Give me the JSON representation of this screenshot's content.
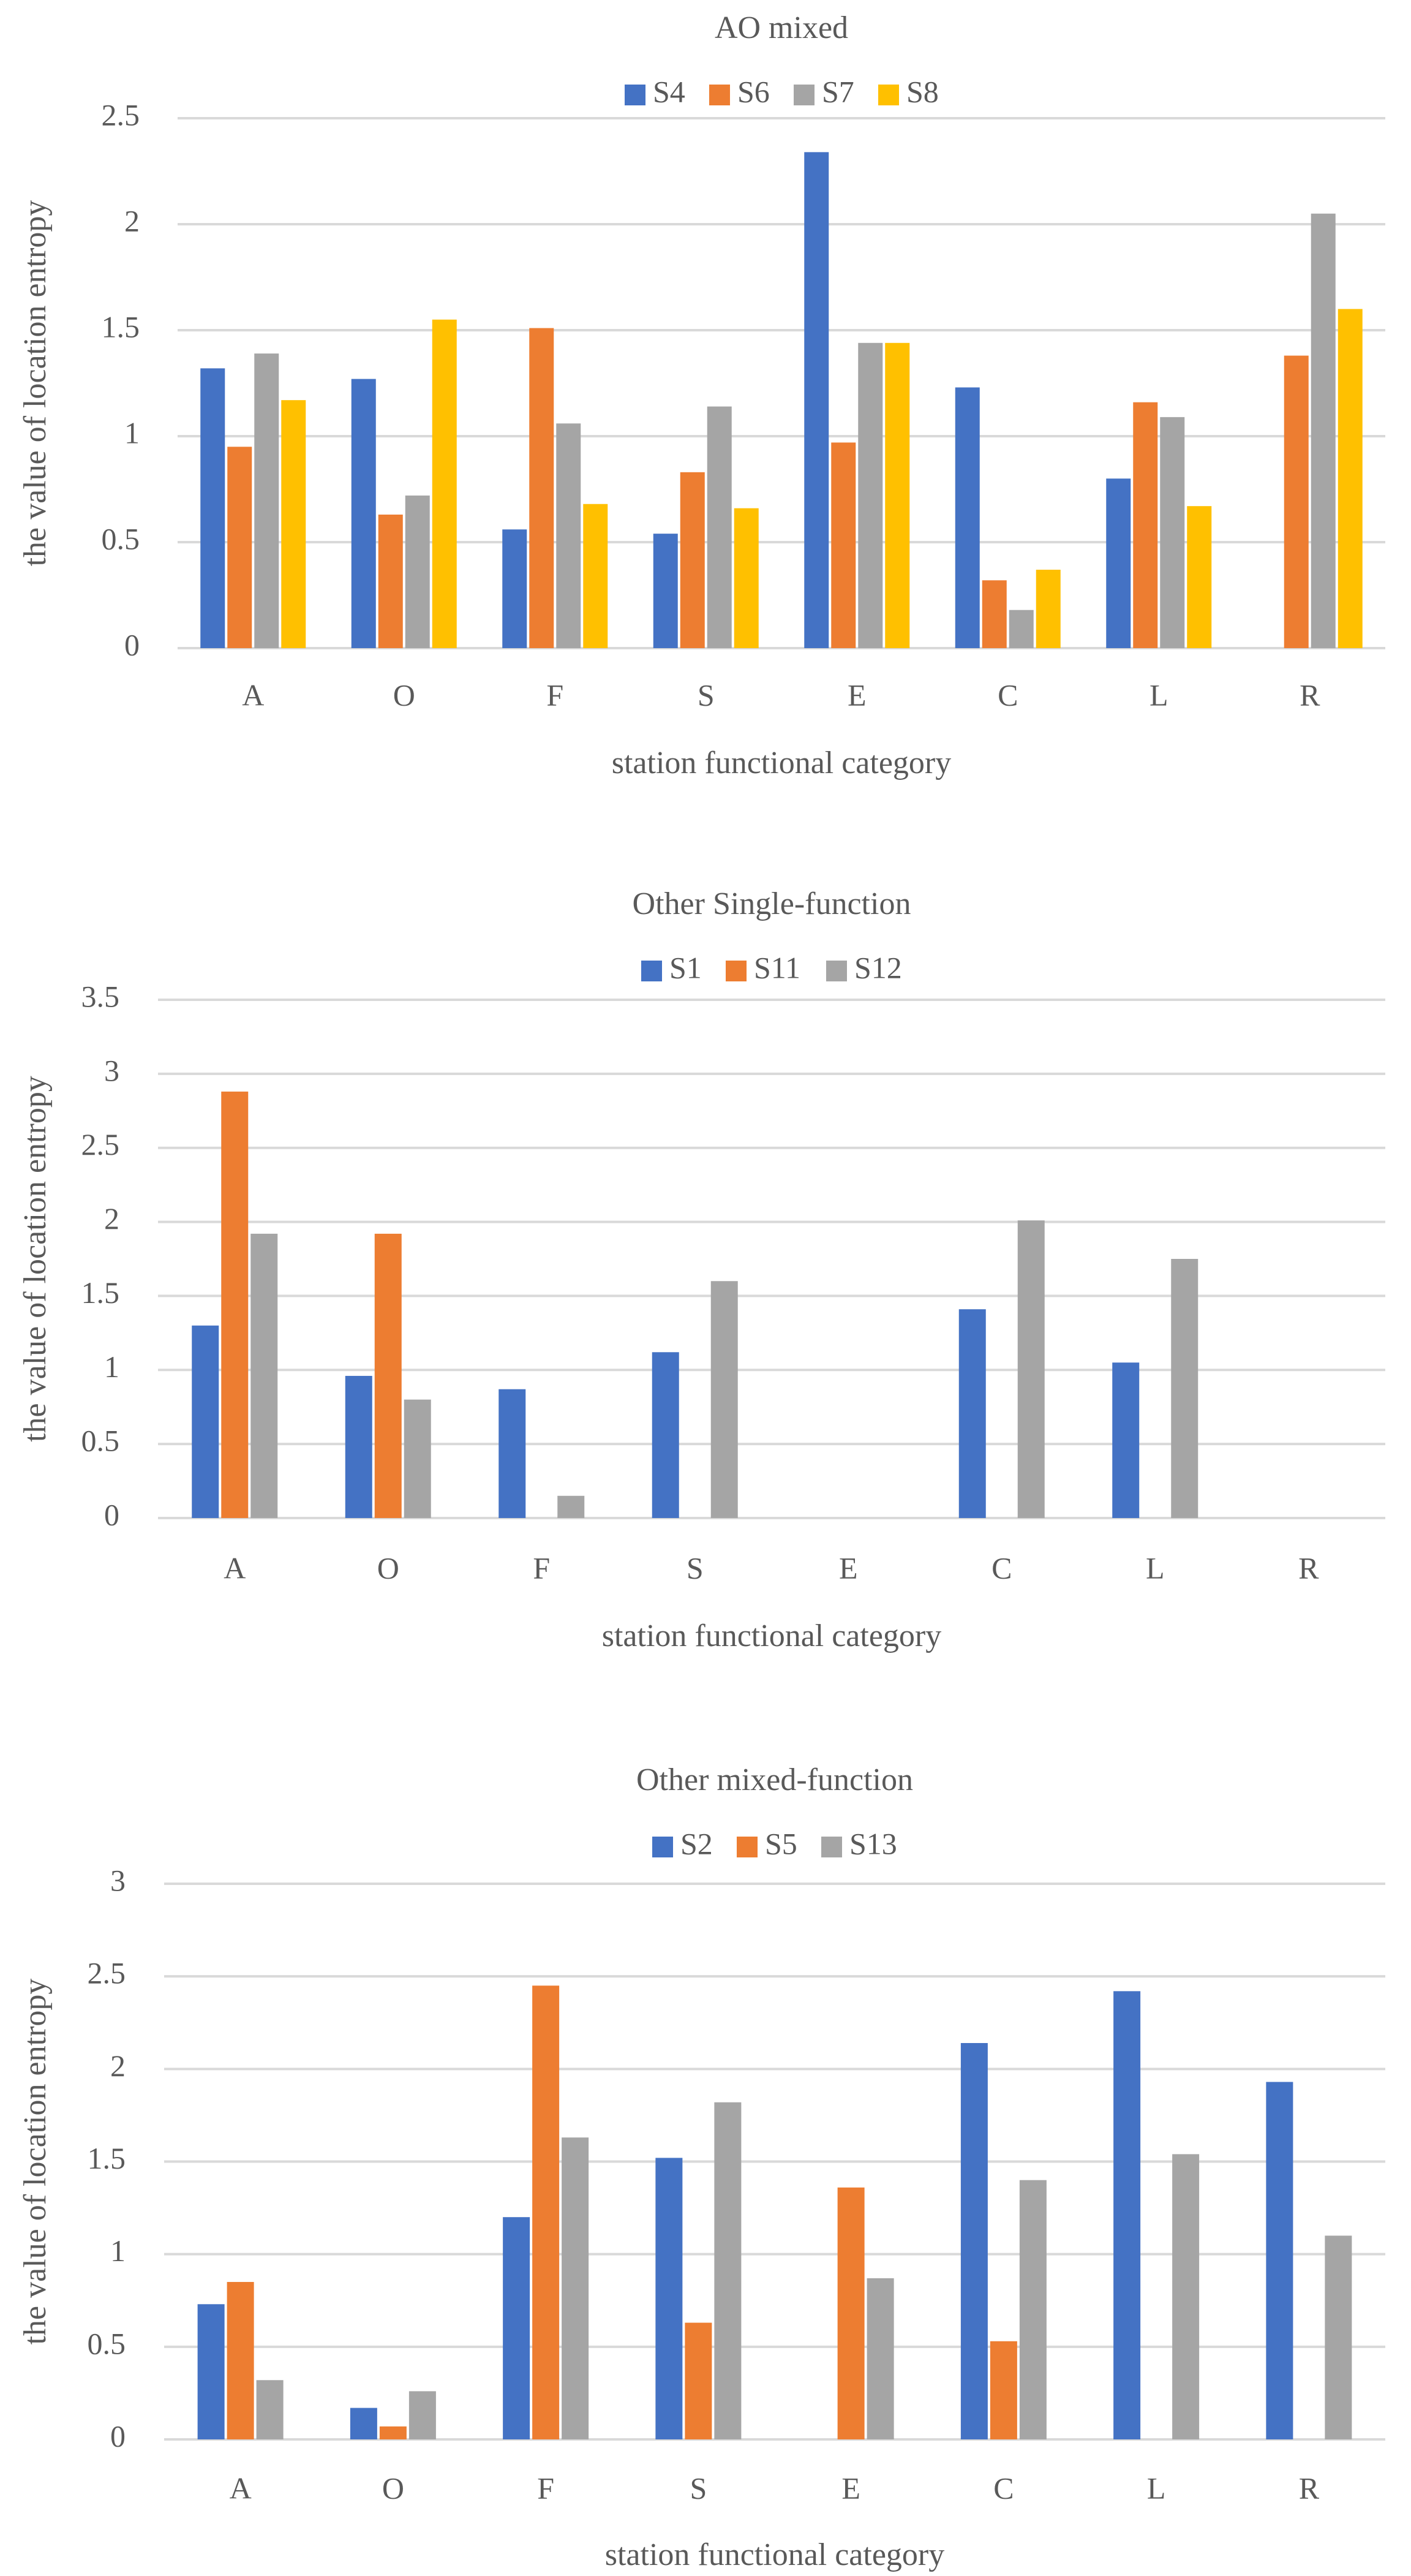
{
  "chart_data": [
    {
      "type": "bar",
      "title": "AO mixed",
      "xlabel": "station functional category",
      "ylabel": "the value of location entropy",
      "categories": [
        "A",
        "O",
        "F",
        "S",
        "E",
        "C",
        "L",
        "R"
      ],
      "ylim": [
        0,
        2.5
      ],
      "yticks": [
        0,
        0.5,
        1,
        1.5,
        2,
        2.5
      ],
      "ytick_labels": [
        "0",
        "0.5",
        "1",
        "1.5",
        "2",
        "2.5"
      ],
      "grid": true,
      "legend_position": "top",
      "series": [
        {
          "name": "S4",
          "color": "#4472C4",
          "values": [
            1.32,
            1.27,
            0.56,
            0.54,
            2.34,
            1.23,
            0.8,
            0
          ]
        },
        {
          "name": "S6",
          "color": "#ED7D31",
          "values": [
            0.95,
            0.63,
            1.51,
            0.83,
            0.97,
            0.32,
            1.16,
            1.38
          ]
        },
        {
          "name": "S7",
          "color": "#A5A5A5",
          "values": [
            1.39,
            0.72,
            1.06,
            1.14,
            1.44,
            0.18,
            1.09,
            2.05
          ]
        },
        {
          "name": "S8",
          "color": "#FFC000",
          "values": [
            1.17,
            1.55,
            0.68,
            0.66,
            1.44,
            0.37,
            0.67,
            1.6
          ]
        }
      ]
    },
    {
      "type": "bar",
      "title": "Other Single-function",
      "xlabel": "station functional category",
      "ylabel": "the value of location entropy",
      "categories": [
        "A",
        "O",
        "F",
        "S",
        "E",
        "C",
        "L",
        "R"
      ],
      "ylim": [
        0,
        3.5
      ],
      "yticks": [
        0,
        0.5,
        1,
        1.5,
        2,
        2.5,
        3,
        3.5
      ],
      "ytick_labels": [
        "0",
        "0.5",
        "1",
        "1.5",
        "2",
        "2.5",
        "3",
        "3.5"
      ],
      "grid": true,
      "legend_position": "top",
      "series": [
        {
          "name": "S1",
          "color": "#4472C4",
          "values": [
            1.3,
            0.96,
            0.87,
            1.12,
            0,
            1.41,
            1.05,
            0
          ]
        },
        {
          "name": "S11",
          "color": "#ED7D31",
          "values": [
            2.88,
            1.92,
            0,
            0,
            0,
            0,
            0,
            0
          ]
        },
        {
          "name": "S12",
          "color": "#A5A5A5",
          "values": [
            1.92,
            0.8,
            0.15,
            1.6,
            0,
            2.01,
            1.75,
            0
          ]
        }
      ]
    },
    {
      "type": "bar",
      "title": "Other mixed-function",
      "xlabel": "station functional category",
      "ylabel": "the value of location entropy",
      "categories": [
        "A",
        "O",
        "F",
        "S",
        "E",
        "C",
        "L",
        "R"
      ],
      "ylim": [
        0,
        3
      ],
      "yticks": [
        0,
        0.5,
        1,
        1.5,
        2,
        2.5,
        3
      ],
      "ytick_labels": [
        "0",
        "0.5",
        "1",
        "1.5",
        "2",
        "2.5",
        "3"
      ],
      "grid": true,
      "legend_position": "top",
      "series": [
        {
          "name": "S2",
          "color": "#4472C4",
          "values": [
            0.73,
            0.17,
            1.2,
            1.52,
            0,
            2.14,
            2.42,
            1.93
          ]
        },
        {
          "name": "S5",
          "color": "#ED7D31",
          "values": [
            0.85,
            0.07,
            2.45,
            0.63,
            1.36,
            0.53,
            0,
            0
          ]
        },
        {
          "name": "S13",
          "color": "#A5A5A5",
          "values": [
            0.32,
            0.26,
            1.63,
            1.82,
            0.87,
            1.4,
            1.54,
            1.1
          ]
        }
      ]
    }
  ]
}
